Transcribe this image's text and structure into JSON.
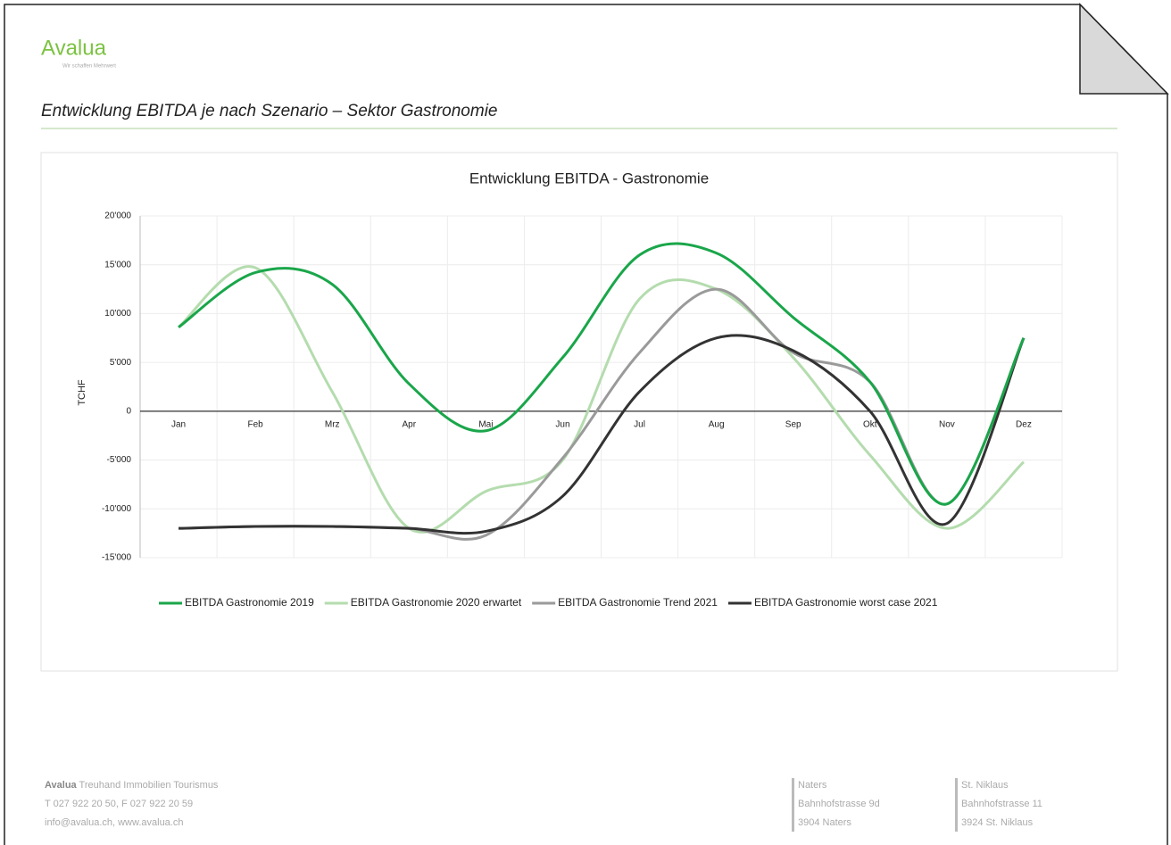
{
  "header": {
    "logo": "Avalua",
    "tagline": "Wir schaffen Mehrwert"
  },
  "heading": "Entwicklung EBITDA je nach Szenario – Sektor Gastronomie",
  "chart_data": {
    "type": "line",
    "title": "Entwicklung EBITDA - Gastronomie",
    "y_label": "TCHF",
    "categories": [
      "Jan",
      "Feb",
      "Mrz",
      "Apr",
      "Mai",
      "Jun",
      "Jul",
      "Aug",
      "Sep",
      "Okt",
      "Nov",
      "Dez"
    ],
    "series": [
      {
        "name": "EBITDA Gastronomie 2019",
        "color": "#1aa64a",
        "values": [
          8600,
          14200,
          13000,
          2800,
          -2000,
          5500,
          16000,
          16200,
          9600,
          3000,
          -9500,
          7500
        ]
      },
      {
        "name": "EBITDA Gastronomie 2020 erwartet",
        "color": "#b4dcae",
        "values": [
          8600,
          14700,
          2000,
          -12000,
          -8200,
          -5000,
          11500,
          12500,
          5500,
          -4500,
          -12000,
          -5200
        ]
      },
      {
        "name": "EBITDA Gastronomie Trend 2021",
        "color": "#9a9a9a",
        "values": [
          -12000,
          -11800,
          -11800,
          -12000,
          -12700,
          -4800,
          6000,
          12500,
          6000,
          3000,
          -9500,
          7500
        ]
      },
      {
        "name": "EBITDA Gastronomie worst case 2021",
        "color": "#333333",
        "values": [
          -12000,
          -11800,
          -11800,
          -12000,
          -12300,
          -8700,
          2000,
          7500,
          6200,
          0,
          -11500,
          7500
        ]
      }
    ],
    "ylim": [
      -15000,
      20000
    ],
    "yticks": [
      {
        "value": -15000,
        "label": "-15'000"
      },
      {
        "value": -10000,
        "label": "-10'000"
      },
      {
        "value": -5000,
        "label": "-5'000"
      },
      0,
      {
        "value": 5000,
        "label": "5'000"
      },
      {
        "value": 10000,
        "label": "10'000"
      },
      {
        "value": 15000,
        "label": "15'000"
      },
      {
        "value": 20000,
        "label": "20'000"
      }
    ],
    "grid": true,
    "legend": "bottom"
  },
  "footer": {
    "company": {
      "name": "Avalua",
      "tagline": "Treuhand Immobilien Tourismus",
      "phone": "T 027 922 20 50, F 027 922 20 59",
      "web": "info@avalua.ch, www.avalua.ch"
    },
    "offices": [
      {
        "lines": [
          "Naters",
          "Bahnhofstrasse 9d",
          "3904 Naters"
        ]
      },
      {
        "lines": [
          "St. Niklaus",
          "Bahnhofstrasse 11",
          "3924 St. Niklaus"
        ]
      }
    ]
  }
}
